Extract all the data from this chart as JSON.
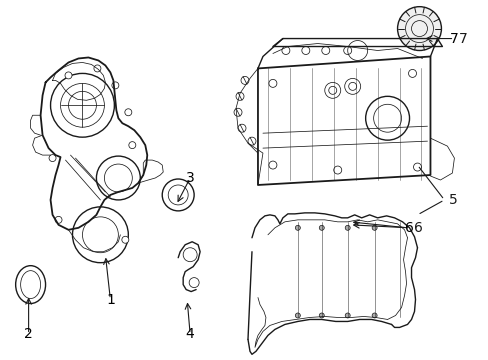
{
  "background_color": "#ffffff",
  "line_color": "#1a1a1a",
  "label_color": "#000000",
  "figsize": [
    4.89,
    3.6
  ],
  "dpi": 100,
  "lw_main": 1.0,
  "lw_thin": 0.55,
  "lw_thick": 1.3
}
